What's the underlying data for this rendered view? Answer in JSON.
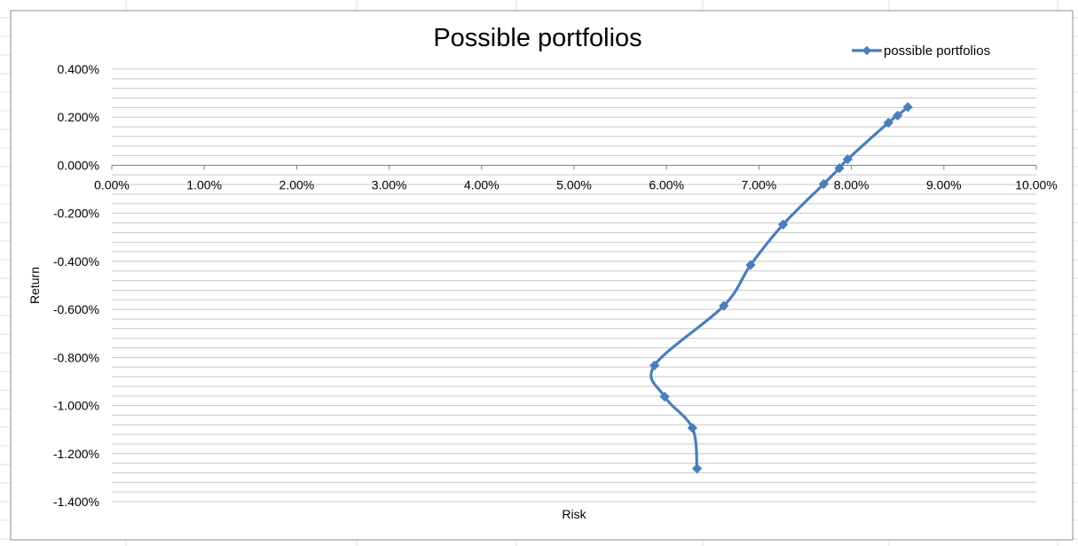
{
  "window": {
    "app": "Spreadsheet chart"
  },
  "colors": {
    "series": "#4a7ebb",
    "gridline": "#c8c8c8",
    "axis": "#7f7f7f",
    "frame": "#8c8c8c"
  },
  "chart_data": {
    "type": "scatter",
    "subtype": "smooth-lines-with-markers",
    "title": "Possible portfolios",
    "xlabel": "Risk",
    "ylabel": "Return",
    "xlim": [
      0,
      0.1
    ],
    "ylim": [
      -0.014,
      0.004
    ],
    "y_major_step": 0.002,
    "y_minor_step": 0.0004,
    "grid": true,
    "x_axis_crosses_at": 0,
    "legend_position": "top-right",
    "x_tick_labels": [
      "0.00%",
      "1.00%",
      "2.00%",
      "3.00%",
      "4.00%",
      "5.00%",
      "6.00%",
      "7.00%",
      "8.00%",
      "9.00%",
      "10.00%"
    ],
    "y_tick_labels": [
      "0.400%",
      "0.200%",
      "0.000%",
      "-0.200%",
      "-0.400%",
      "-0.600%",
      "-0.800%",
      "-1.000%",
      "-1.200%",
      "-1.400%"
    ],
    "series": [
      {
        "name": "possible portfolios",
        "marker": "diamond-icon",
        "points": [
          {
            "x": 0.0633,
            "y": -0.01262
          },
          {
            "x": 0.0628,
            "y": -0.01093
          },
          {
            "x": 0.0598,
            "y": -0.00963
          },
          {
            "x": 0.0587,
            "y": -0.00833
          },
          {
            "x": 0.0662,
            "y": -0.00585
          },
          {
            "x": 0.0691,
            "y": -0.00415
          },
          {
            "x": 0.0726,
            "y": -0.00247
          },
          {
            "x": 0.077,
            "y": -0.00078
          },
          {
            "x": 0.0787,
            "y": -0.00012
          },
          {
            "x": 0.0796,
            "y": 0.00025
          },
          {
            "x": 0.084,
            "y": 0.00177
          },
          {
            "x": 0.085,
            "y": 0.00207
          },
          {
            "x": 0.0861,
            "y": 0.00242
          }
        ]
      }
    ]
  }
}
